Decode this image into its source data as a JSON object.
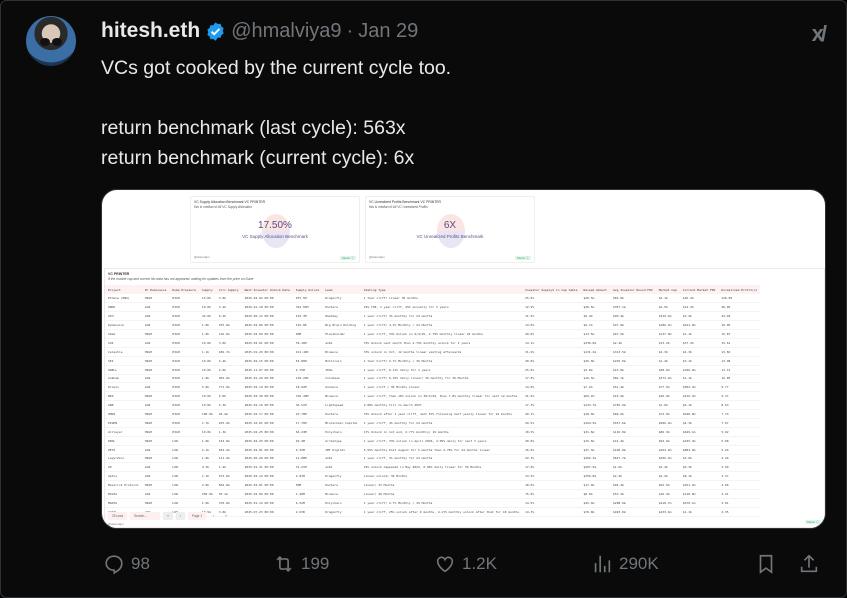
{
  "tweet": {
    "name": "hitesh.eth",
    "handle": "@hmalviya9",
    "separator": "·",
    "date": "Jan 29",
    "lines": [
      "VCs got cooked by the current cycle too.",
      "",
      "return benchmark (last cycle): 563x",
      "return benchmark (current cycle): 6x"
    ],
    "verified_color": "#1d9bf0",
    "grok_label": "x/"
  },
  "media": {
    "cards": [
      {
        "title": "VC Supply Allocation Benchmark   VC PRINTER",
        "subtitle": "this is median of All VC Supply Allocation",
        "value": "17.50%",
        "label": "VC Supply Allocation Benchmark",
        "footer": "@duenrajm",
        "badge": "Metric ⓘ"
      },
      {
        "title": "VC Unrealized Profits Benchmark   VC PRINTER",
        "subtitle": "this is median of All VC Unrealized Profits",
        "value": "6X",
        "label": "VC Unrealized Profits Benchmark",
        "footer": "@duenrajm",
        "badge": "Metric ⓘ"
      }
    ],
    "table": {
      "title": "VC PRINTER",
      "subtitle": "If the market cap and current fdv data has not appeared, waiting for updates from the price on Dune.",
      "columns": [
        "Project",
        "VC Dominance",
        "Dump Pressure",
        "Supply",
        "Circ Supply",
        "Next Investor Unlock Date",
        "Supply Unlock",
        "Lead",
        "Vesting Type",
        "Investor Supply% in Cap table",
        "Raised Amount",
        "Avg Investor Round FDV",
        "Market Cap",
        "Current Market FDV",
        "Unrealized Profit(x)"
      ],
      "rows": [
        [
          "Ethena (ENA)",
          "HIGH",
          "HIGH",
          "15.0b",
          "3.0b",
          "2025-04-02 00:00",
          "937.5M",
          "Dragonfly",
          "1 Year cliff/ Linear 36 months",
          "25.0%",
          "$20.5m",
          "$83.0m",
          "$2.1b",
          "$16.4b",
          "126.00"
        ],
        [
          "ONDO",
          "LOW",
          "HIGH",
          "10.0b",
          "3.2b",
          "2026-01-18 00:00",
          "322.56M",
          "Pantera",
          "25% TGE, 1 year cliff, 25% annually for 3 years",
          "12.9%",
          "$46.5m",
          "$357.1m",
          "$4.5b",
          "$14.3b",
          "40.05"
        ],
        [
          "ATH",
          "LOW",
          "HIGH",
          "42.0b",
          "6.2b",
          "2025-06-12 00:00",
          "193.3M",
          "Hashkey",
          "1 year cliff/ 4% monthly for 24 months",
          "11.5%",
          "$9.4m",
          "$90.4m",
          "$319.4m",
          "$2.2b",
          "24.49"
        ],
        [
          "Dymension",
          "LOW",
          "HIGH",
          "1.0b",
          "235.0m",
          "2025-02-06 00:00",
          "191.8K",
          "Big Brain Holding",
          "1 year cliff/ 4.2% Monthly / 24 Months",
          "14.0%",
          "$6.7m",
          "$47.9m",
          "$186.2m",
          "$911.9m",
          "19.05"
        ],
        [
          "SAGA",
          "HIGH",
          "HIGH",
          "1.0b",
          "116.6m",
          "2025-04-09 00:00",
          "60M",
          "Placeholder",
          "1 year cliff, 33% Unlock on 9/4/25, 2.79% monthly linear 24 months",
          "20.0%",
          "$13.5m",
          "$67.5m",
          "$137.0m",
          "$1.1b",
          "15.87"
        ],
        [
          "SUI",
          "LOW",
          "HIGH",
          "10.0b",
          "3.0b",
          "2025-02-01 00:00",
          "39.16M",
          "a16z",
          "33% Unlock next month then 2.79% monthly unlock for 2 years",
          "14.1%",
          "$336.0m",
          "$2.4b",
          "$13.2b",
          "$37.3b",
          "15.61"
        ],
        [
          "Celestia",
          "HIGH",
          "HIGH",
          "1.1b",
          "186.7m",
          "2025-01-29 00:00",
          "411.49K",
          "Binance",
          "33% unlock in Oct, 12 months linear vesting afterwards",
          "31.6%",
          "$131.4m",
          "$313.5m",
          "$2.3b",
          "$4.3b",
          "13.82"
        ],
        [
          "SEI",
          "HIGH",
          "HIGH",
          "10.0b",
          "4.4b",
          "2025-02-15 00:00",
          "54.86M",
          "Multicoin",
          "1 Year Cliff/ 2.7% Monthly / 36 Months",
          "20.0%",
          "$45.0m",
          "$225.0m",
          "$1.4b",
          "$3.1b",
          "13.98"
        ],
        [
          "SWELL",
          "HIGH",
          "HIGH",
          "10.0b",
          "2.0b",
          "2025-11-07 00:00",
          "2.75M",
          "IOSG",
          "1 year cliff, 0.11% daily for 3 years",
          "25.0%",
          "$3.0m",
          "$15.0m",
          "$38.6m",
          "$196.9m",
          "13.12"
        ],
        [
          "Ankham",
          "LOW",
          "HIGH",
          "1.0b",
          "302.0m",
          "2025-01-29 00:00",
          "139.29K",
          "Coinbase",
          "1 year cliff/ 0.10% daily linear/ 36 monthly for 36 Months",
          "17.8%",
          "$16.5m",
          "$82.7m",
          "$373.4m",
          "$1.1b",
          "12.85"
        ],
        [
          "Pixels",
          "LOW",
          "HIGH",
          "5.0b",
          "771.9m",
          "2025-02-19 00:00",
          "18.92M",
          "Animoca",
          "1 year cliff / 36 Months Linear",
          "14.0%",
          "$7.2m",
          "$51.4m",
          "$77.5m",
          "$502.3m",
          "9.77"
        ],
        [
          "NKZ",
          "HIGH",
          "HIGH",
          "10.0b",
          "2.0b",
          "2025-04-30 00:00",
          "316.40M",
          "Binance",
          "1 year cliff, then 10% unlock on 30/4/26, then 7.8% monthly linear for next 12 months",
          "31.6%",
          "$69.2m",
          "$19.4m",
          "$46.9m",
          "$216.3m",
          "9.37"
        ],
        [
          "ARB",
          "LOW",
          "HIGH",
          "10.0b",
          "4.3b",
          "2025-02-16 00:00",
          "36.51M",
          "Lightspeed",
          "2.08% monthly till to march 2027",
          "17.3%",
          "$123.7m",
          "$756.9m",
          "$1.6b",
          "$6.1b",
          "8.63"
        ],
        [
          "OMNI",
          "HIGH",
          "HIGH",
          "100.0m",
          "18.4m",
          "2025-04-17 00:00",
          "23.78M",
          "Pantera",
          "33% Unlock after 1 year cliff, next 67% following half yearly linear for 24 months",
          "20.1%",
          "$18.0m",
          "$89.6m",
          "$72.0m",
          "$648.0m",
          "7.74"
        ],
        [
          "EIGEN",
          "HIGH",
          "HIGH",
          "1.7b",
          "235.2m",
          "2025-10-01 00:00",
          "17.76M",
          "Blockchain Capital",
          "1 year cliff, 4% monthly for 24 months",
          "29.5%",
          "$164.5m",
          "$557.6m",
          "$996.4m",
          "$4.3b",
          "7.67"
        ],
        [
          "Alllayer",
          "HIGH",
          "HIGH",
          "10.0b",
          "1.3b",
          "2025-02-25 00:00",
          "64.24M",
          "Polychain",
          "17% Unlock in 1st end, 2.77% monthly/ 19 months",
          "18.5%",
          "$31.6m",
          "$116.0m",
          "$86.3m",
          "$649.1m",
          "5.92"
        ],
        [
          "PROL",
          "HIGH",
          "LOW",
          "1.0b",
          "123.0m",
          "2025-04-25 00:00",
          "92.4M",
          "Archetype",
          "1 year cliff, 33% unlock in April 2026, 4.09% daily for next 3 years",
          "20.0%",
          "$15.6m",
          "$41.4m",
          "$93.6m",
          "$235.4m",
          "5.68"
        ],
        [
          "ZETA",
          "LOW",
          "LOW",
          "2.1b",
          "634.2m",
          "2025-02-01 00:00",
          "9.32M",
          "IMT Digital",
          "5.55% monthly Post August for 5 months then 2.78% for 24 months linear",
          "16.0%",
          "$27.3m",
          "$160.0m",
          "$264.9m",
          "$883.9m",
          "5.24"
        ],
        [
          "LayerZero",
          "HIGH",
          "LOW",
          "1.0b",
          "111.2m",
          "2025-06-20 00:00",
          "12.88M",
          "a16z",
          "1 year cliff, 4% monthly for 24 months",
          "32.3%",
          "$262.3m",
          "$817.7m",
          "$396.4m",
          "$3.6b",
          "4.44"
        ],
        [
          "OP",
          "LOW",
          "LOW",
          "4.3b",
          "1.4b",
          "2025-01-31 00:00",
          "31.21M",
          "a16z",
          "25% unlock happened in May 2023, 0.06% daily linear for 36 Months",
          "17.0%",
          "$267.5m",
          "$1.6b",
          "$2.4b",
          "$6.3b",
          "3.99"
        ],
        [
          "Aptos",
          "LOW",
          "LOW",
          "1.1b",
          "573.6m",
          "2025-02-12 00:00",
          "2.81M",
          "Dragonfly",
          "Linear unlock/ 36 Months",
          "13.5%",
          "$350.0m",
          "$2.4b",
          "$4.2b",
          "$8.1b",
          "3.37"
        ],
        [
          "Maverick Protocol",
          "HIGH",
          "LOW",
          "2.0b",
          "504.0m",
          "2025-04-01 00:00",
          "50M",
          "Pantera",
          "Linear/ 33 Months",
          "18.0%",
          "$17.0m",
          "$94.4m",
          "$65.5m",
          "$251.2m",
          "2.66"
        ],
        [
          "MAVIA",
          "LOW",
          "LOW",
          "250.0m",
          "35.1m",
          "2025-02-06 00:00",
          "1.48M",
          "Binance",
          "Linear/ 49 Months",
          "15.0%",
          "$8.0m",
          "$53.3m",
          "$16.3m",
          "$118.0m",
          "2.21"
        ],
        [
          "MANTA",
          "HIGH",
          "LOW",
          "1.0b",
          "370.0m",
          "2025-01-19 00:00",
          "6.52M",
          "Polychain",
          "1 year cliff/ 2.7% Monthly / 36 Months",
          "14.5%",
          "$45.4m",
          "$298.9m",
          "$218.7m",
          "$670.1m",
          "2.01"
        ],
        [
          "AVAIL",
          "LOW",
          "LOW",
          "10.5b",
          "3.0b",
          "2025-07-23 00:00",
          "2.63B",
          "Dragonfly",
          "1 year cliff, 25% unlock after 9 months, 4.17% monthly unlock after that for 18 months",
          "14.3%",
          "$70.0m",
          "$493.0m",
          "$233.4m",
          "$1.1b",
          "2.35"
        ]
      ],
      "pager": {
        "rows": "25 rows",
        "search_placeholder": "Search...",
        "first": "«",
        "prev": "‹",
        "page": "Page 1",
        "next": "›",
        "last": "»"
      },
      "footer": "@duenrajm",
      "more": "Metric ⓘ"
    }
  },
  "actions": {
    "replies": "98",
    "reposts": "199",
    "likes": "1.2K",
    "views": "290K"
  }
}
